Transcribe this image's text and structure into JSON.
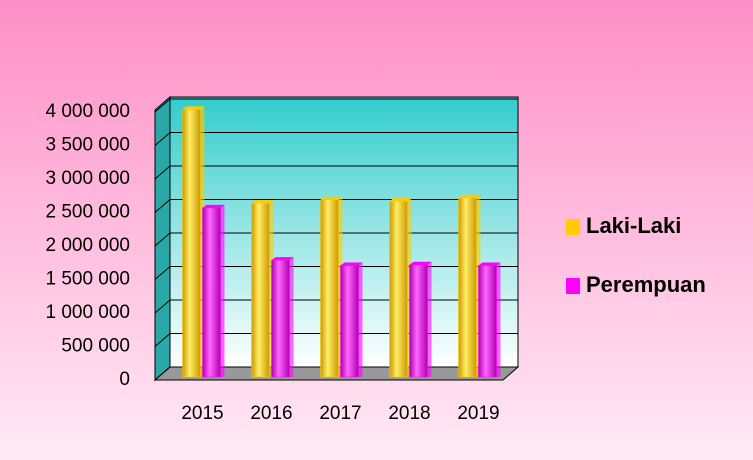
{
  "chart_data": {
    "type": "bar3d",
    "categories": [
      "2015",
      "2016",
      "2017",
      "2018",
      "2019"
    ],
    "series": [
      {
        "name": "Laki-Laki",
        "color": "#ffcc00",
        "values": [
          3950000,
          2550000,
          2600000,
          2580000,
          2630000
        ]
      },
      {
        "name": "Perempuan",
        "color": "#ff00ff",
        "values": [
          2480000,
          1700000,
          1620000,
          1630000,
          1620000
        ]
      }
    ],
    "ylim": [
      0,
      4000000
    ],
    "yticks": [
      0,
      {
        "value": 500000,
        "label": "500 000"
      },
      {
        "value": 1000000,
        "label": "1 000 000"
      },
      {
        "value": 1500000,
        "label": "1 500 000"
      },
      {
        "value": 2000000,
        "label": "2 000 000"
      },
      {
        "value": 2500000,
        "label": "2 500 000"
      },
      {
        "value": 3000000,
        "label": "3 000 000"
      },
      {
        "value": 3500000,
        "label": "3 500 000"
      },
      {
        "value": 4000000,
        "label": "4 000 000"
      }
    ],
    "grid": true,
    "legend": "right"
  }
}
